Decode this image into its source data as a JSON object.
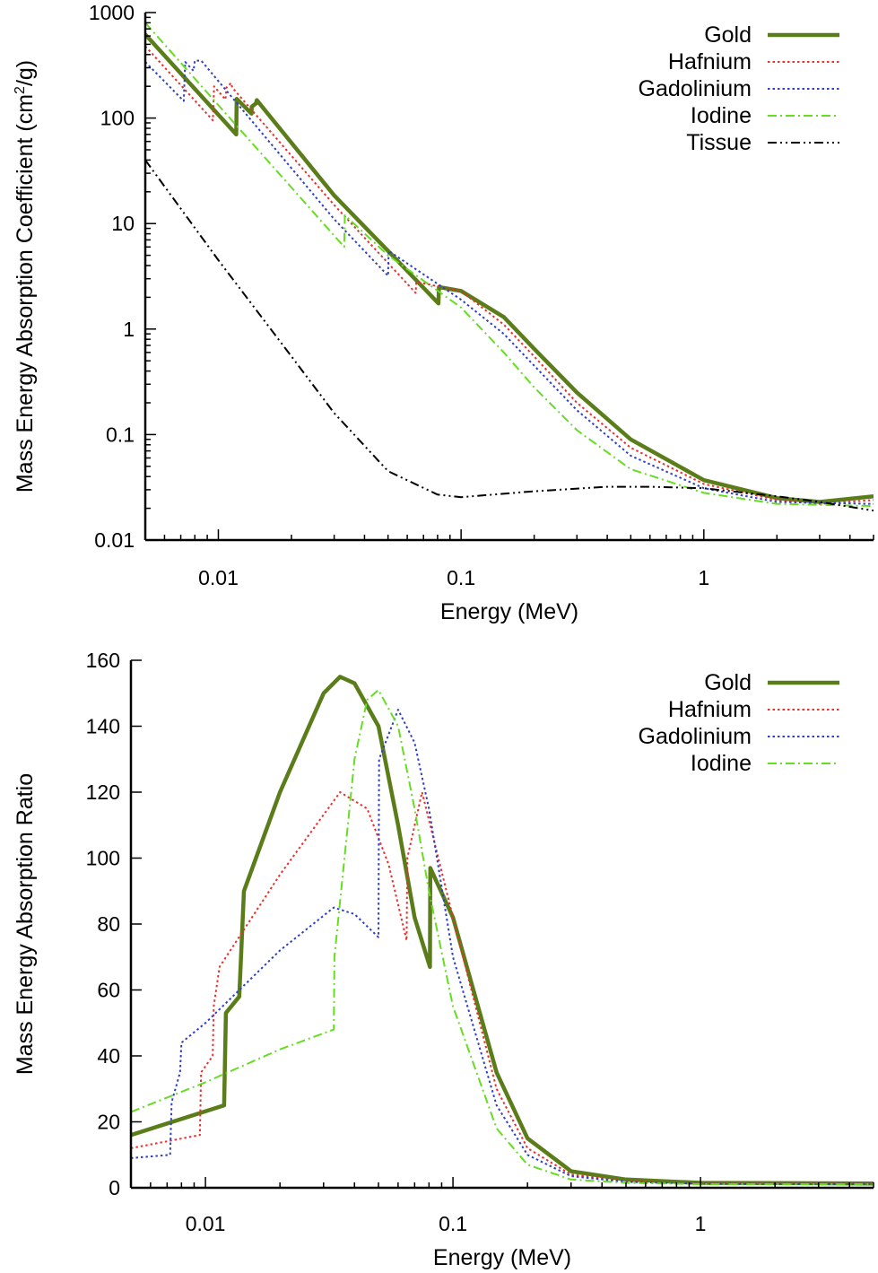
{
  "chart_data": [
    {
      "type": "line",
      "xlabel": "Energy (MeV)",
      "ylabel_main": "Mass Energy Absorption Coefficient (cm",
      "ylabel_sup": "2",
      "ylabel_end": "/g)",
      "xscale": "log",
      "yscale": "log",
      "xlim": [
        0.005,
        5
      ],
      "ylim": [
        0.01,
        1000
      ],
      "x_ticks": [
        {
          "value": 0.01,
          "label": "0.01"
        },
        {
          "value": 0.1,
          "label": "0.1"
        },
        {
          "value": 1,
          "label": "1"
        }
      ],
      "y_ticks": [
        {
          "value": 0.01,
          "label": "0.01"
        },
        {
          "value": 0.1,
          "label": "0.1"
        },
        {
          "value": 1,
          "label": "1"
        },
        {
          "value": 10,
          "label": "10"
        },
        {
          "value": 100,
          "label": "100"
        },
        {
          "value": 1000,
          "label": "1000"
        }
      ],
      "legend_position": "top-right",
      "grid": false,
      "series": [
        {
          "name": "Gold",
          "color": "#5a7d1a",
          "style": "solid",
          "points": [
            [
              0.005,
              620
            ],
            [
              0.01185,
              70
            ],
            [
              0.0119,
              152
            ],
            [
              0.0137,
              110
            ],
            [
              0.01373,
              128
            ],
            [
              0.0143,
              138
            ],
            [
              0.0144,
              148
            ],
            [
              0.03,
              18.5
            ],
            [
              0.05,
              5.5
            ],
            [
              0.0807,
              1.75
            ],
            [
              0.081,
              2.5
            ],
            [
              0.1,
              2.3
            ],
            [
              0.15,
              1.3
            ],
            [
              0.2,
              0.65
            ],
            [
              0.3,
              0.25
            ],
            [
              0.5,
              0.09
            ],
            [
              1,
              0.037
            ],
            [
              2,
              0.025
            ],
            [
              3,
              0.023
            ],
            [
              5,
              0.026
            ]
          ]
        },
        {
          "name": "Hafnium",
          "color": "#e8312e",
          "style": "dotted",
          "points": [
            [
              0.005,
              480
            ],
            [
              0.0095,
              95
            ],
            [
              0.0096,
              200
            ],
            [
              0.0107,
              150
            ],
            [
              0.0108,
              195
            ],
            [
              0.0113,
              215
            ],
            [
              0.0114,
              195
            ],
            [
              0.03,
              15
            ],
            [
              0.065,
              2.2
            ],
            [
              0.0654,
              2.8
            ],
            [
              0.1,
              2.3
            ],
            [
              0.15,
              1.1
            ],
            [
              0.2,
              0.55
            ],
            [
              0.3,
              0.2
            ],
            [
              0.5,
              0.075
            ],
            [
              1,
              0.034
            ],
            [
              2,
              0.024
            ],
            [
              3,
              0.022
            ],
            [
              5,
              0.024
            ]
          ]
        },
        {
          "name": "Gadolinium",
          "color": "#2e3fc8",
          "style": "dotted",
          "points": [
            [
              0.005,
              340
            ],
            [
              0.0072,
              145
            ],
            [
              0.0073,
              340
            ],
            [
              0.0079,
              280
            ],
            [
              0.008,
              350
            ],
            [
              0.0085,
              350
            ],
            [
              0.03,
              11
            ],
            [
              0.05,
              3.2
            ],
            [
              0.0503,
              5.5
            ],
            [
              0.1,
              1.9
            ],
            [
              0.15,
              0.9
            ],
            [
              0.2,
              0.45
            ],
            [
              0.3,
              0.17
            ],
            [
              0.5,
              0.063
            ],
            [
              1,
              0.031
            ],
            [
              2,
              0.023
            ],
            [
              5,
              0.022
            ]
          ]
        },
        {
          "name": "Iodine",
          "color": "#66dd22",
          "style": "dashdot",
          "points": [
            [
              0.005,
              800
            ],
            [
              0.033,
              6
            ],
            [
              0.0332,
              12
            ],
            [
              0.05,
              5
            ],
            [
              0.1,
              1.6
            ],
            [
              0.15,
              0.6
            ],
            [
              0.2,
              0.28
            ],
            [
              0.3,
              0.11
            ],
            [
              0.5,
              0.047
            ],
            [
              1,
              0.028
            ],
            [
              2,
              0.022
            ],
            [
              5,
              0.021
            ]
          ]
        },
        {
          "name": "Tissue",
          "color": "#000000",
          "style": "dashdotdot",
          "points": [
            [
              0.005,
              40
            ],
            [
              0.01,
              4.5
            ],
            [
              0.02,
              0.55
            ],
            [
              0.03,
              0.16
            ],
            [
              0.05,
              0.045
            ],
            [
              0.08,
              0.027
            ],
            [
              0.1,
              0.0255
            ],
            [
              0.2,
              0.029
            ],
            [
              0.4,
              0.032
            ],
            [
              0.6,
              0.032
            ],
            [
              1,
              0.031
            ],
            [
              2,
              0.026
            ],
            [
              3,
              0.023
            ],
            [
              5,
              0.019
            ]
          ]
        }
      ]
    },
    {
      "type": "line",
      "xlabel": "Energy (MeV)",
      "ylabel_main": "Mass Energy Absorption Ratio",
      "xscale": "log",
      "yscale": "linear",
      "xlim": [
        0.005,
        5
      ],
      "ylim": [
        0,
        160
      ],
      "x_ticks": [
        {
          "value": 0.01,
          "label": "0.01"
        },
        {
          "value": 0.1,
          "label": "0.1"
        },
        {
          "value": 1,
          "label": "1"
        }
      ],
      "y_ticks": [
        {
          "value": 0,
          "label": "0"
        },
        {
          "value": 20,
          "label": "20"
        },
        {
          "value": 40,
          "label": "40"
        },
        {
          "value": 60,
          "label": "60"
        },
        {
          "value": 80,
          "label": "80"
        },
        {
          "value": 100,
          "label": "100"
        },
        {
          "value": 120,
          "label": "120"
        },
        {
          "value": 140,
          "label": "140"
        },
        {
          "value": 160,
          "label": "160"
        }
      ],
      "legend_position": "top-right",
      "grid": false,
      "series": [
        {
          "name": "Gold",
          "color": "#5a7d1a",
          "style": "solid",
          "points": [
            [
              0.005,
              16
            ],
            [
              0.0119,
              25
            ],
            [
              0.0121,
              53
            ],
            [
              0.0137,
              58
            ],
            [
              0.0143,
              90
            ],
            [
              0.02,
              120
            ],
            [
              0.03,
              150
            ],
            [
              0.035,
              155
            ],
            [
              0.04,
              153
            ],
            [
              0.05,
              140
            ],
            [
              0.06,
              110
            ],
            [
              0.07,
              82
            ],
            [
              0.0807,
              67
            ],
            [
              0.081,
              97
            ],
            [
              0.1,
              82
            ],
            [
              0.15,
              35
            ],
            [
              0.2,
              15
            ],
            [
              0.3,
              5
            ],
            [
              0.5,
              2.5
            ],
            [
              1,
              1.5
            ],
            [
              5,
              1.3
            ]
          ]
        },
        {
          "name": "Hafnium",
          "color": "#e8312e",
          "style": "dotted",
          "points": [
            [
              0.005,
              12
            ],
            [
              0.0095,
              16
            ],
            [
              0.0096,
              35
            ],
            [
              0.0107,
              40
            ],
            [
              0.0108,
              55
            ],
            [
              0.0114,
              67
            ],
            [
              0.02,
              95
            ],
            [
              0.035,
              120
            ],
            [
              0.045,
              115
            ],
            [
              0.055,
              98
            ],
            [
              0.065,
              75
            ],
            [
              0.0654,
              100
            ],
            [
              0.075,
              120
            ],
            [
              0.1,
              82
            ],
            [
              0.15,
              30
            ],
            [
              0.2,
              12
            ],
            [
              0.3,
              4
            ],
            [
              0.5,
              2
            ],
            [
              1,
              1.3
            ],
            [
              5,
              1.3
            ]
          ]
        },
        {
          "name": "Gadolinium",
          "color": "#2e3fc8",
          "style": "dotted",
          "points": [
            [
              0.005,
              9
            ],
            [
              0.0072,
              10
            ],
            [
              0.0073,
              26
            ],
            [
              0.0079,
              35
            ],
            [
              0.008,
              44
            ],
            [
              0.01,
              50
            ],
            [
              0.02,
              72
            ],
            [
              0.033,
              85
            ],
            [
              0.04,
              83
            ],
            [
              0.05,
              76
            ],
            [
              0.0503,
              130
            ],
            [
              0.06,
              145
            ],
            [
              0.07,
              135
            ],
            [
              0.08,
              115
            ],
            [
              0.1,
              70
            ],
            [
              0.15,
              25
            ],
            [
              0.2,
              10
            ],
            [
              0.3,
              3.5
            ],
            [
              0.5,
              1.8
            ],
            [
              1,
              1.2
            ],
            [
              5,
              1.2
            ]
          ]
        },
        {
          "name": "Iodine",
          "color": "#66dd22",
          "style": "dashdot",
          "points": [
            [
              0.005,
              23
            ],
            [
              0.01,
              32
            ],
            [
              0.02,
              42
            ],
            [
              0.033,
              48
            ],
            [
              0.0332,
              70
            ],
            [
              0.04,
              130
            ],
            [
              0.045,
              148
            ],
            [
              0.05,
              151
            ],
            [
              0.06,
              140
            ],
            [
              0.07,
              115
            ],
            [
              0.08,
              90
            ],
            [
              0.1,
              55
            ],
            [
              0.15,
              18
            ],
            [
              0.2,
              7
            ],
            [
              0.3,
              2.5
            ],
            [
              0.5,
              1.5
            ],
            [
              1,
              1.1
            ],
            [
              5,
              1.1
            ]
          ]
        }
      ]
    }
  ]
}
